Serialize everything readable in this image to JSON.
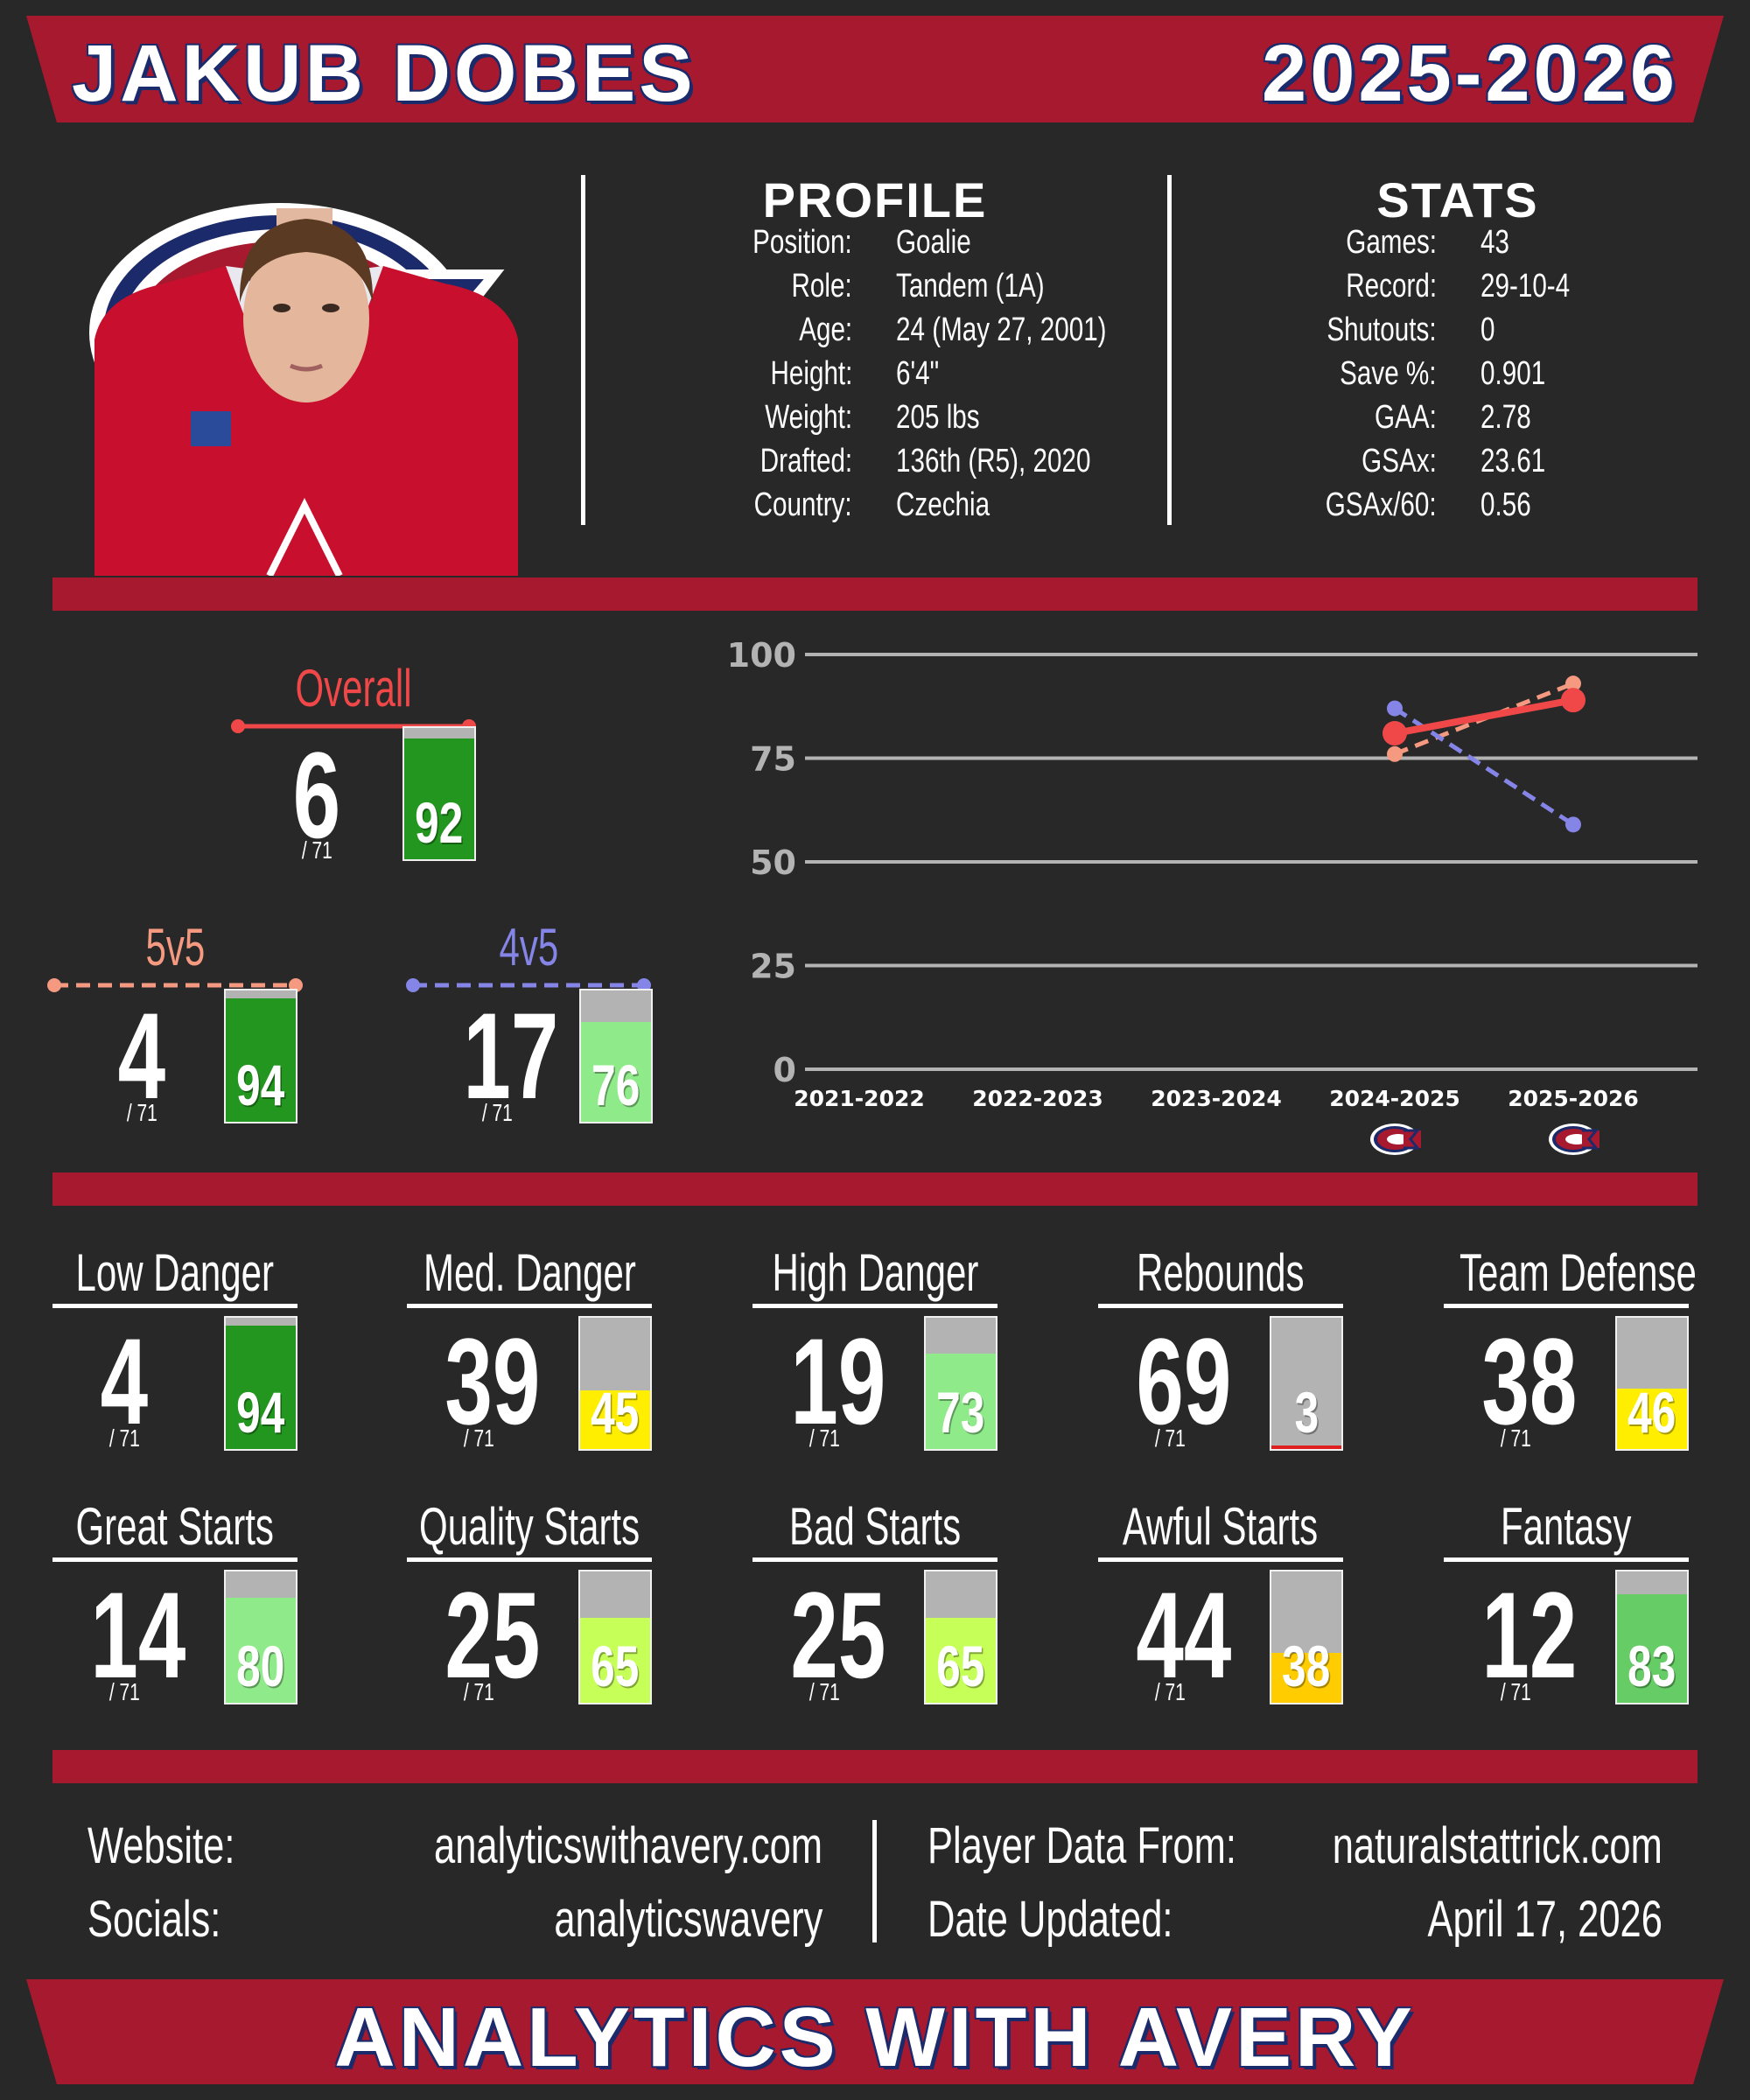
{
  "header": {
    "player_name": "JAKUB DOBES",
    "season": "2025-2026"
  },
  "colors": {
    "banner": "#a6192e",
    "banner_shadow": "#1b2a6b",
    "background": "#282828",
    "overall": "#f04848",
    "five_v_five": "#f59a80",
    "four_v_five": "#8585e8",
    "tier_dark_green": "#23961f",
    "tier_green": "#66cc66",
    "tier_light_green": "#8fea8a",
    "tier_lime": "#c6ff57",
    "tier_yellow": "#ffee00",
    "tier_orange": "#ffcc00",
    "tier_red": "#e02020"
  },
  "profile": {
    "title": "PROFILE",
    "rows": [
      {
        "label": "Position:",
        "value": "Goalie"
      },
      {
        "label": "Role:",
        "value": "Tandem (1A)"
      },
      {
        "label": "Age:",
        "value": "24 (May 27, 2001)"
      },
      {
        "label": "Height:",
        "value": "6'4\""
      },
      {
        "label": "Weight:",
        "value": "205 lbs"
      },
      {
        "label": "Drafted:",
        "value": "136th (R5), 2020"
      },
      {
        "label": "Country:",
        "value": "Czechia"
      }
    ]
  },
  "stats": {
    "title": "STATS",
    "rows": [
      {
        "label": "Games:",
        "value": "43"
      },
      {
        "label": "Record:",
        "value": "29-10-4"
      },
      {
        "label": "Shutouts:",
        "value": "0"
      },
      {
        "label": "Save %:",
        "value": "0.901"
      },
      {
        "label": "GAA:",
        "value": "2.78"
      },
      {
        "label": "GSAx:",
        "value": "23.61"
      },
      {
        "label": "GSAx/60:",
        "value": "0.56"
      }
    ]
  },
  "ratings": {
    "overall": {
      "label": "Overall",
      "rank": "6",
      "of": "/ 71",
      "percentile": 92
    },
    "five_v_five": {
      "label": "5v5",
      "rank": "4",
      "of": "/ 71",
      "percentile": 94
    },
    "four_v_five": {
      "label": "4v5",
      "rank": "17",
      "of": "/ 71",
      "percentile": 76
    }
  },
  "chart_data": {
    "type": "line",
    "categories": [
      "2021-2022",
      "2022-2023",
      "2023-2024",
      "2024-2025",
      "2025-2026"
    ],
    "ylim": [
      0,
      100
    ],
    "yticks": [
      0,
      25,
      50,
      75,
      100
    ],
    "series": [
      {
        "key": "overall",
        "values": [
          null,
          null,
          null,
          81,
          89
        ]
      },
      {
        "key": "five_v_five",
        "values": [
          null,
          null,
          null,
          76,
          93
        ]
      },
      {
        "key": "four_v_five",
        "values": [
          null,
          null,
          null,
          87,
          59
        ]
      }
    ],
    "team_logo_seasons": [
      "2024-2025",
      "2025-2026"
    ]
  },
  "metrics": [
    {
      "label": "Low Danger",
      "rank": "4",
      "of": "/ 71",
      "percentile": 94
    },
    {
      "label": "Med. Danger",
      "rank": "39",
      "of": "/ 71",
      "percentile": 45
    },
    {
      "label": "High Danger",
      "rank": "19",
      "of": "/ 71",
      "percentile": 73
    },
    {
      "label": "Rebounds",
      "rank": "69",
      "of": "/ 71",
      "percentile": 3
    },
    {
      "label": "Team Defense",
      "rank": "38",
      "of": "/ 71",
      "percentile": 46
    },
    {
      "label": "Great Starts",
      "rank": "14",
      "of": "/ 71",
      "percentile": 80
    },
    {
      "label": "Quality Starts",
      "rank": "25",
      "of": "/ 71",
      "percentile": 65
    },
    {
      "label": "Bad Starts",
      "rank": "25",
      "of": "/ 71",
      "percentile": 65
    },
    {
      "label": "Awful Starts",
      "rank": "44",
      "of": "/ 71",
      "percentile": 38
    },
    {
      "label": "Fantasy",
      "rank": "12",
      "of": "/ 71",
      "percentile": 83
    }
  ],
  "footer": {
    "website_label": "Website:",
    "website_value": "analyticswithavery.com",
    "socials_label": "Socials:",
    "socials_value": "analyticswavery",
    "data_label": "Player Data From:",
    "data_value": "naturalstattrick.com",
    "updated_label": "Date Updated:",
    "updated_value": "April 17, 2026",
    "brand": "ANALYTICS WITH AVERY"
  }
}
